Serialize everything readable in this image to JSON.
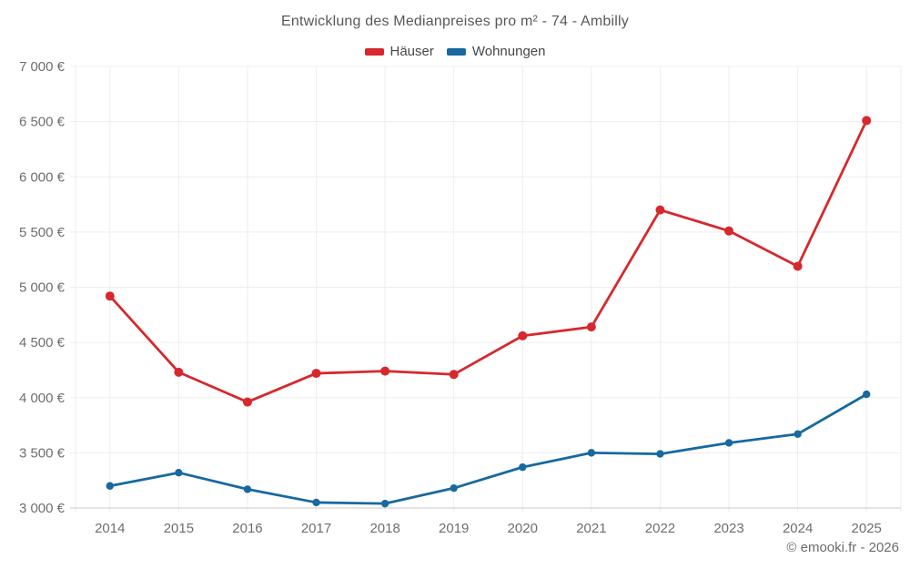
{
  "page": {
    "background": "#ffffff",
    "copyright": "© emooki.fr - 2026"
  },
  "styles": {
    "title_color": "#56585b",
    "legend_text_color": "#44474a",
    "axis_label_color": "#6e6e6e",
    "grid_color": "#ededed",
    "axis_line_color": "#c9c9c9",
    "accent_red": "#d7282d",
    "accent_blue": "#17699f",
    "copyright_color": "#6a6c6e"
  },
  "chart_data": {
    "type": "line",
    "title": "Entwicklung des Medianpreises pro m² - 74 - Ambilly",
    "xlabel": "",
    "ylabel": "",
    "categories": [
      "2014",
      "2015",
      "2016",
      "2017",
      "2018",
      "2019",
      "2020",
      "2021",
      "2022",
      "2023",
      "2024",
      "2025"
    ],
    "series": [
      {
        "name": "Häuser",
        "color": "#d7282d",
        "values": [
          4920,
          4230,
          3960,
          4220,
          4240,
          4210,
          4560,
          4640,
          5700,
          5510,
          5190,
          6510
        ]
      },
      {
        "name": "Wohnungen",
        "color": "#17699f",
        "values": [
          3200,
          3320,
          3170,
          3050,
          3040,
          3180,
          3370,
          3500,
          3490,
          3590,
          3670,
          4030
        ]
      }
    ],
    "ylim": [
      3000,
      7000
    ],
    "y_ticks": [
      {
        "value": 3000,
        "label": "3 000 €"
      },
      {
        "value": 3500,
        "label": "3 500 €"
      },
      {
        "value": 4000,
        "label": "4 000 €"
      },
      {
        "value": 4500,
        "label": "4 500 €"
      },
      {
        "value": 5000,
        "label": "5 000 €"
      },
      {
        "value": 5500,
        "label": "5 500 €"
      },
      {
        "value": 6000,
        "label": "6 000 €"
      },
      {
        "value": 6500,
        "label": "6 500 €"
      },
      {
        "value": 7000,
        "label": "7 000 €"
      }
    ],
    "grid": true,
    "legend_position": "top"
  }
}
